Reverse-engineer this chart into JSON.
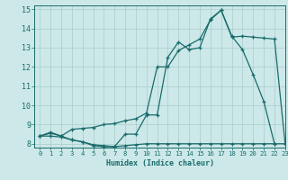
{
  "title": "",
  "xlabel": "Humidex (Indice chaleur)",
  "background_color": "#cce8e8",
  "grid_color": "#aacccc",
  "line_color": "#1a6b6b",
  "xlim": [
    -0.5,
    23
  ],
  "ylim": [
    7.8,
    15.2
  ],
  "xticks": [
    0,
    1,
    2,
    3,
    4,
    5,
    6,
    7,
    8,
    9,
    10,
    11,
    12,
    13,
    14,
    15,
    16,
    17,
    18,
    19,
    20,
    21,
    22,
    23
  ],
  "yticks": [
    8,
    9,
    10,
    11,
    12,
    13,
    14,
    15
  ],
  "line1_x": [
    0,
    1,
    2,
    3,
    4,
    5,
    6,
    7,
    8,
    9,
    10,
    11,
    12,
    13,
    14,
    15,
    16,
    17,
    18,
    19,
    20,
    21,
    22
  ],
  "line1_y": [
    8.4,
    8.6,
    8.4,
    8.2,
    8.1,
    7.9,
    7.85,
    7.85,
    8.5,
    8.5,
    9.5,
    9.5,
    12.5,
    13.3,
    12.9,
    13.0,
    14.5,
    14.95,
    13.6,
    12.9,
    11.6,
    10.2,
    8.0
  ],
  "line2_x": [
    0,
    1,
    2,
    3,
    4,
    5,
    6,
    7,
    8,
    9,
    10,
    11,
    12,
    13,
    14,
    15,
    16,
    17,
    18,
    19,
    20,
    21,
    22,
    23
  ],
  "line2_y": [
    8.4,
    8.55,
    8.4,
    8.75,
    8.8,
    8.85,
    9.0,
    9.05,
    9.2,
    9.3,
    9.6,
    12.0,
    12.0,
    12.85,
    13.15,
    13.45,
    14.45,
    14.95,
    13.55,
    13.6,
    13.55,
    13.5,
    13.45,
    8.0
  ],
  "line3_x": [
    0,
    1,
    2,
    3,
    4,
    5,
    6,
    7,
    8,
    9,
    10,
    11,
    12,
    13,
    14,
    15,
    16,
    17,
    18,
    19,
    20,
    21,
    22,
    23
  ],
  "line3_y": [
    8.4,
    8.4,
    8.35,
    8.2,
    8.1,
    7.95,
    7.9,
    7.85,
    7.9,
    7.95,
    8.0,
    8.0,
    8.0,
    8.0,
    8.0,
    8.0,
    8.0,
    8.0,
    8.0,
    8.0,
    8.0,
    8.0,
    8.0,
    8.0
  ]
}
